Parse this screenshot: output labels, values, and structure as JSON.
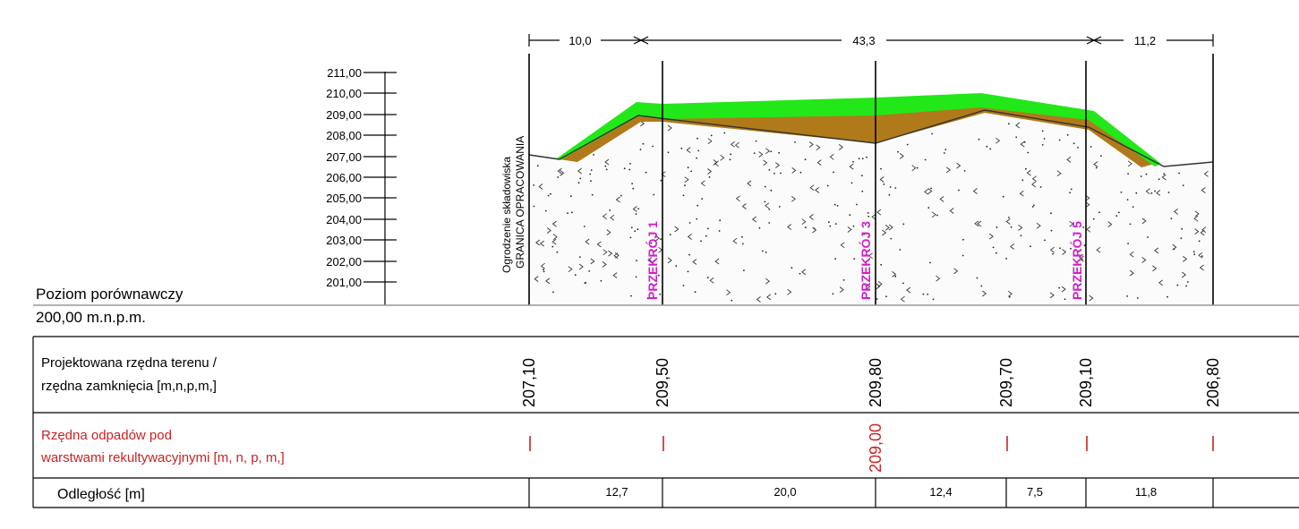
{
  "top_dimensions": [
    "10,0",
    "43,3",
    "11,2"
  ],
  "scale": {
    "ticks": [
      "211,00",
      "210,00",
      "209,00",
      "208,00",
      "207,00",
      "206,00",
      "205,00",
      "204,00",
      "203,00",
      "202,00",
      "201,00"
    ]
  },
  "fence_label": {
    "line1": "Ogrodzenie składowiska",
    "line2": "GRANICA OPRACOWANIA"
  },
  "sections": [
    "PRZEKRÓJ 1",
    "PRZEKRÓJ 3",
    "PRZEKRÓJ 5"
  ],
  "reference": {
    "label": "Poziom porównawczy",
    "value": "200,00 m.n.p.m."
  },
  "table": {
    "row1_label_line1": "Projektowana rzędna terenu /",
    "row1_label_line2": "rzędna zamknięcia  [m,n,p,m,]",
    "row1_values": [
      "207,10",
      "209,50",
      "209,80",
      "209,70",
      "209,10",
      "206,80"
    ],
    "row2_label_line1": "Rzędna odpadów pod",
    "row2_label_line2": "warstwami rekultywacyjnymi  [m, n, p, m,]",
    "row2_value": "209,00",
    "row3_label": "Odległość [m]",
    "distances": [
      "12,7",
      "20,0",
      "12,4",
      "7,5",
      "11,8"
    ]
  },
  "colors": {
    "grass": "#22e81a",
    "soil": "#b07a1a",
    "hatch": "#c94a2a",
    "magenta": "#d020c8",
    "red": "#cc2222"
  }
}
